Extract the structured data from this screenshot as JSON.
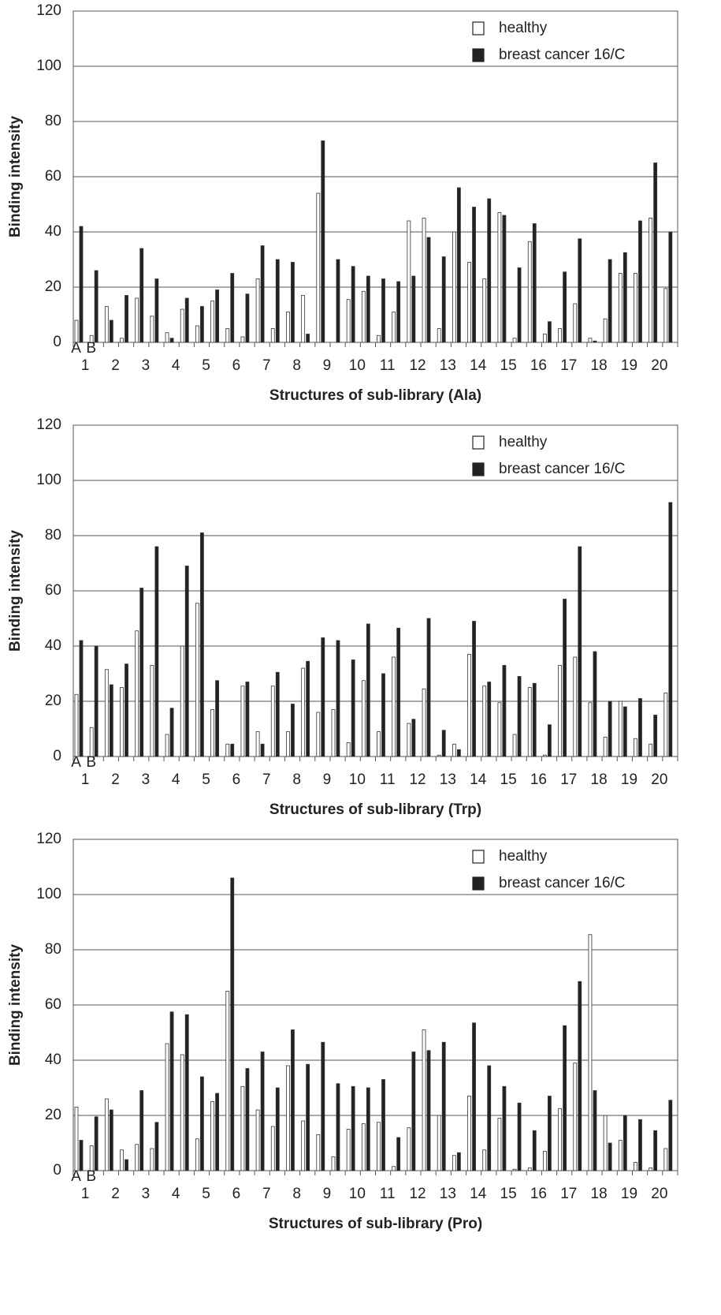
{
  "chart_data": [
    {
      "type": "bar",
      "ylabel": "Binding intensity",
      "xlabel": "Structures of sub-library (Ala)",
      "groups": [
        "1",
        "2",
        "3",
        "4",
        "5",
        "6",
        "7",
        "8",
        "9",
        "10",
        "11",
        "12",
        "13",
        "14",
        "15",
        "16",
        "17",
        "18",
        "19",
        "20"
      ],
      "subgroups": [
        "A",
        "B"
      ],
      "series": [
        {
          "name": "healthy",
          "color": "#ffffff",
          "values": [
            8,
            2.5,
            13,
            1.5,
            16,
            9.5,
            3.5,
            12,
            6,
            15,
            5,
            2,
            23,
            5,
            11,
            17,
            54,
            0,
            15.5,
            18.5,
            2.5,
            11,
            44,
            45,
            5,
            40,
            29,
            23,
            47,
            1.5,
            36.5,
            3,
            5,
            14,
            1.5,
            8.5,
            25,
            25,
            45,
            19.5
          ]
        },
        {
          "name": "breast cancer 16/C",
          "color": "#222222",
          "values": [
            42,
            26,
            8,
            17,
            34,
            23,
            1.5,
            16,
            13,
            19,
            25,
            17.5,
            35,
            30,
            29,
            3,
            73,
            30,
            27.5,
            24,
            23,
            22,
            24,
            38,
            31,
            56,
            49,
            52,
            46,
            27,
            43,
            7.5,
            25.5,
            37.5,
            0.5,
            30,
            32.5,
            44,
            65,
            40
          ]
        }
      ],
      "ylim": [
        0,
        120
      ],
      "yticks": [
        0,
        20,
        40,
        60,
        80,
        100,
        120
      ],
      "grid": true,
      "legend": "upper right"
    },
    {
      "type": "bar",
      "ylabel": "Binding intensity",
      "xlabel": "Structures of sub-library (Trp)",
      "groups": [
        "1",
        "2",
        "3",
        "4",
        "5",
        "6",
        "7",
        "8",
        "9",
        "10",
        "11",
        "12",
        "13",
        "14",
        "15",
        "16",
        "17",
        "18",
        "19",
        "20"
      ],
      "subgroups": [
        "A",
        "B"
      ],
      "series": [
        {
          "name": "healthy",
          "color": "#ffffff",
          "values": [
            22.5,
            10.5,
            31.5,
            25,
            45.5,
            33,
            8,
            40,
            55.5,
            17,
            4.5,
            25.5,
            9,
            25.5,
            9,
            32,
            16,
            17,
            5,
            27.5,
            9,
            36,
            12,
            24.5,
            0.5,
            4.5,
            37,
            25.5,
            19.5,
            8,
            25,
            0.5,
            33,
            36,
            19.5,
            7,
            20,
            6.5,
            4.5,
            23
          ]
        },
        {
          "name": "breast cancer 16/C",
          "color": "#222222",
          "values": [
            42,
            40,
            26,
            33.5,
            61,
            76,
            17.5,
            69,
            81,
            27.5,
            4.5,
            27,
            4.5,
            30.5,
            19,
            34.5,
            43,
            42,
            35,
            48,
            30,
            46.5,
            13.5,
            50,
            9.5,
            2.5,
            49,
            27,
            33,
            29,
            26.5,
            11.5,
            57,
            76,
            38,
            20,
            18,
            21,
            15,
            92
          ]
        }
      ],
      "ylim": [
        0,
        120
      ],
      "yticks": [
        0,
        20,
        40,
        60,
        80,
        100,
        120
      ],
      "grid": true,
      "legend": "upper right"
    },
    {
      "type": "bar",
      "ylabel": "Binding intensity",
      "xlabel": "Structures of sub-library (Pro)",
      "groups": [
        "1",
        "2",
        "3",
        "4",
        "5",
        "6",
        "7",
        "8",
        "9",
        "10",
        "11",
        "12",
        "13",
        "14",
        "15",
        "16",
        "17",
        "18",
        "19",
        "20"
      ],
      "subgroups": [
        "A",
        "B"
      ],
      "series": [
        {
          "name": "healthy",
          "color": "#ffffff",
          "values": [
            23,
            9,
            26,
            7.5,
            9.5,
            8,
            46,
            42,
            11.5,
            25,
            65,
            30.5,
            22,
            16,
            38,
            18,
            13,
            5,
            15,
            17,
            17.5,
            1.5,
            15.5,
            51,
            20,
            5.5,
            27,
            7.5,
            19,
            0.5,
            1,
            7,
            22.5,
            39,
            85.5,
            20,
            11,
            3,
            1,
            8
          ]
        },
        {
          "name": "breast cancer 16/C",
          "color": "#222222",
          "values": [
            11,
            19.5,
            22,
            4,
            29,
            17.5,
            57.5,
            56.5,
            34,
            28,
            106,
            37,
            43,
            30,
            51,
            38.5,
            46.5,
            31.5,
            30.5,
            30,
            33,
            12,
            43,
            43.5,
            46.5,
            6.5,
            53.5,
            38,
            30.5,
            24.5,
            14.5,
            27,
            52.5,
            68.5,
            29,
            10,
            20,
            18.5,
            14.5,
            25.5
          ]
        }
      ],
      "ylim": [
        0,
        120
      ],
      "yticks": [
        0,
        20,
        40,
        60,
        80,
        100,
        120
      ],
      "grid": true,
      "legend": "upper right"
    }
  ]
}
